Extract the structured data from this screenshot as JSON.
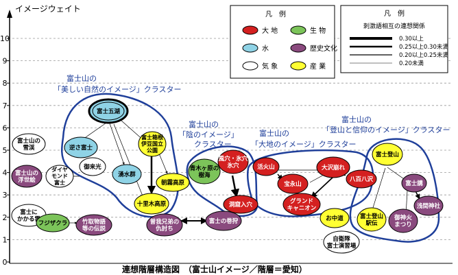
{
  "axis": {
    "y_title": "イメージウェイト",
    "ticks": [
      "0",
      "1",
      "2",
      "3",
      "4",
      "5",
      "6",
      "7",
      "8",
      "9",
      "10"
    ],
    "caption": "連想階層構造図　（富士山イメージ／階層＝愛知）"
  },
  "legend1": {
    "title": "凡　例",
    "items": [
      {
        "label": "大 地",
        "color": "#d42020"
      },
      {
        "label": "生 物",
        "color": "#7cc45a"
      },
      {
        "label": "水",
        "color": "#8fd3e6"
      },
      {
        "label": "歴史文化",
        "color": "#8a4a7e"
      },
      {
        "label": "気 象",
        "color": "#ffffff"
      },
      {
        "label": "産 業",
        "color": "#ffff33"
      }
    ]
  },
  "legend2": {
    "title": "凡　例",
    "subtitle": "刺激語相互の連想関係",
    "items": [
      "0.30以上",
      "0.25以上0.30未満",
      "0.20以上0.25未満",
      "0.20未満"
    ]
  },
  "clusters": [
    {
      "line1": "富士山の",
      "line2": "「美しい自然のイメージ」クラスター"
    },
    {
      "line1": "富士山の",
      "line2": "「陰のイメージ」",
      "line3": "クラスター"
    },
    {
      "line1": "富士山の",
      "line2": "「大地のイメージ」クラスター"
    },
    {
      "line1": "富士山の",
      "line2": "「登山と信仰のイメージ」クラスター"
    }
  ],
  "nodes": {
    "fujigoko": {
      "label": [
        "富士五湖"
      ],
      "color": "#8fd3e6"
    },
    "fujisan_yuki": {
      "label": [
        "富士山の",
        "雪渓"
      ],
      "color": "#ffffff"
    },
    "sakasafuji": {
      "label": [
        "逆さ富士"
      ],
      "color": "#8fd3e6"
    },
    "hakone": {
      "label": [
        "富士箱根",
        "伊豆国立",
        "公園"
      ],
      "color": "#ffff33"
    },
    "ukiyoe": {
      "label": [
        "富士山の",
        "浮世絵"
      ],
      "color": "#8a4a7e"
    },
    "diamond": {
      "label": [
        "ダイヤ",
        "モンド",
        "富士"
      ],
      "color": "#ffffff"
    },
    "goraikou": {
      "label": [
        "御来光"
      ],
      "color": "#ffffff"
    },
    "yusuigun": {
      "label": [
        "湧水群"
      ],
      "color": "#8fd3e6"
    },
    "asagiri": {
      "label": [
        "朝霧高原"
      ],
      "color": "#ffff33"
    },
    "jumokuhara": {
      "label": [
        "十里木高原"
      ],
      "color": "#ffff33"
    },
    "kasagumo": {
      "label": [
        "富士に",
        "かかる雲"
      ],
      "color": "#ffffff"
    },
    "fujizakura": {
      "label": [
        "フジザクラ"
      ],
      "color": "#7cc45a"
    },
    "taketori": {
      "label": [
        "竹取物語",
        "等の伝説"
      ],
      "color": "#8a4a7e"
    },
    "soga": {
      "label": [
        "曽我兄弟の",
        "仇討ち"
      ],
      "color": "#8a4a7e"
    },
    "makigari": {
      "label": [
        "富士の巻狩"
      ],
      "color": "#8a4a7e"
    },
    "aokigahara": {
      "label": [
        "青木ヶ原の",
        "樹海"
      ],
      "color": "#7cc45a"
    },
    "fuketsu": {
      "label": [
        "風穴・氷穴",
        "氷穴"
      ],
      "color": "#d42020"
    },
    "dokutsu": {
      "label": [
        "洞窟入穴"
      ],
      "color": "#d42020"
    },
    "kakazan": {
      "label": [
        "活火山"
      ],
      "color": "#d42020"
    },
    "hoeizan": {
      "label": [
        "宝永山"
      ],
      "color": "#d42020"
    },
    "osawa": {
      "label": [
        "大沢崩れ"
      ],
      "color": "#d42020"
    },
    "hachihachi": {
      "label": [
        "八百八沢"
      ],
      "color": "#d42020"
    },
    "grandcanyon": {
      "label": [
        "グランド",
        "キャニオン"
      ],
      "color": "#d42020"
    },
    "ochudo": {
      "label": [
        "お中道"
      ],
      "color": "#ffff33"
    },
    "tozan": {
      "label": [
        "富士登山"
      ],
      "color": "#ffff33"
    },
    "fujiko": {
      "label": [
        "富士講"
      ],
      "color": "#8a4a7e"
    },
    "sengen": {
      "label": [
        "浅間神社"
      ],
      "color": "#8a4a7e"
    },
    "eki": {
      "label": [
        "富士登山",
        "駅伝"
      ],
      "color": "#ffff33"
    },
    "gojinka": {
      "label": [
        "御神火",
        "まつり"
      ],
      "color": "#8a4a7e"
    },
    "jieitai": {
      "label": [
        "自衛隊",
        "富士演習場"
      ],
      "color": "#ffffff"
    }
  }
}
